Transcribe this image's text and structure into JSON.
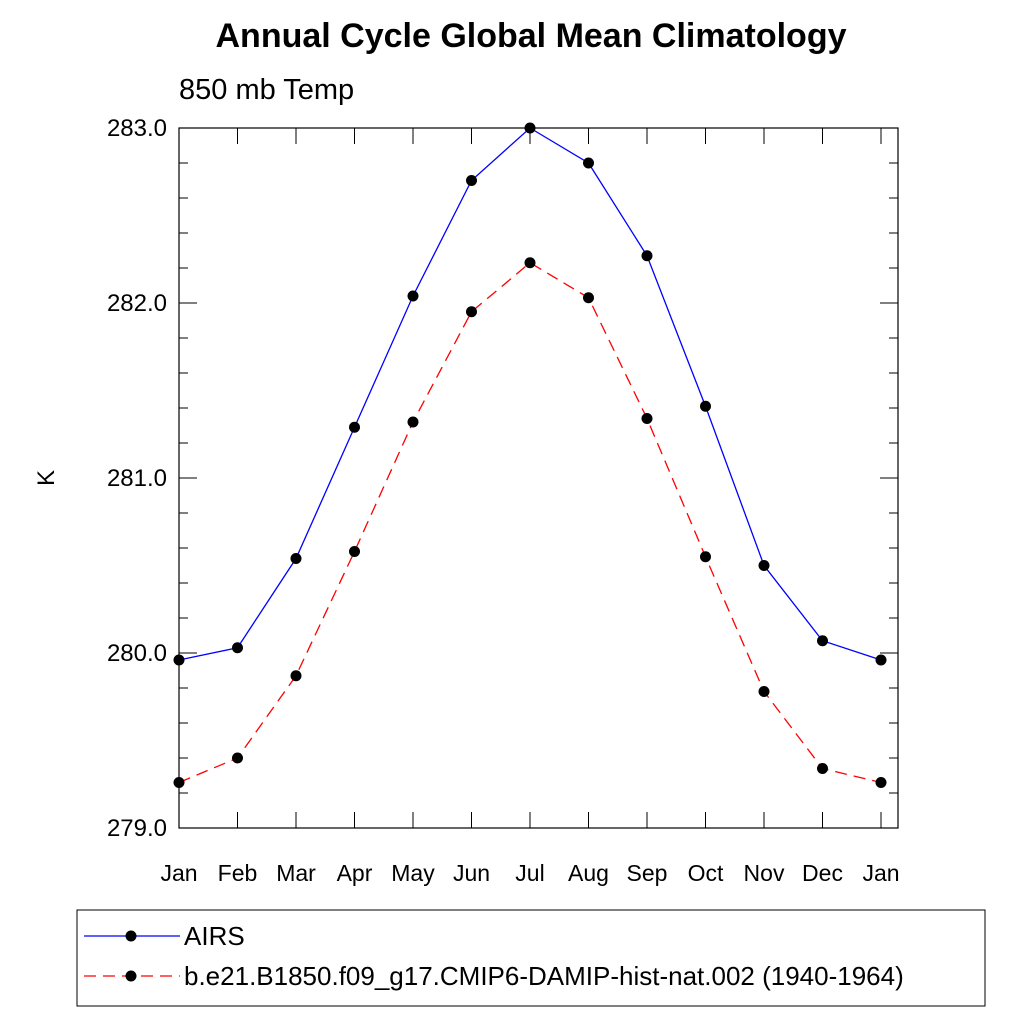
{
  "chart_data": {
    "type": "line",
    "title": "Annual Cycle Global Mean Climatology",
    "subtitle": "850 mb Temp",
    "xlabel": "",
    "ylabel": "K",
    "categories": [
      "Jan",
      "Feb",
      "Mar",
      "Apr",
      "May",
      "Jun",
      "Jul",
      "Aug",
      "Sep",
      "Oct",
      "Nov",
      "Dec",
      "Jan"
    ],
    "ylim": [
      279.0,
      283.0
    ],
    "yticks": [
      "279.0",
      "280.0",
      "281.0",
      "282.0",
      "283.0"
    ],
    "grid": false,
    "legend_position": "bottom",
    "series": [
      {
        "name": "AIRS",
        "color": "#0000ff",
        "line_style": "solid",
        "marker": "filled-circle",
        "values": [
          279.96,
          280.03,
          280.54,
          281.29,
          282.04,
          282.7,
          283.0,
          282.8,
          282.27,
          281.41,
          280.5,
          280.07,
          279.96
        ]
      },
      {
        "name": "b.e21.B1850.f09_g17.CMIP6-DAMIP-hist-nat.002 (1940-1964)",
        "color": "#ff0000",
        "line_style": "dashed",
        "marker": "filled-circle",
        "values": [
          279.26,
          279.4,
          279.87,
          280.58,
          281.32,
          281.95,
          282.23,
          282.03,
          281.34,
          280.55,
          279.78,
          279.34,
          279.26
        ]
      }
    ]
  }
}
